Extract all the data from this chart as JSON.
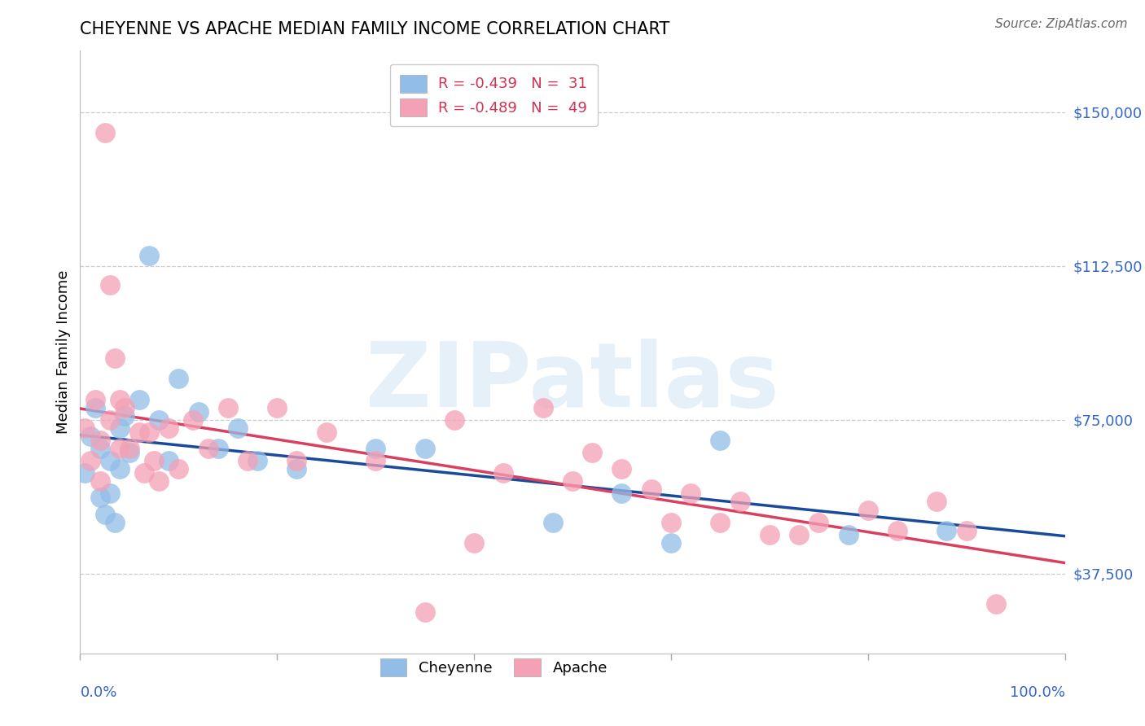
{
  "title": "CHEYENNE VS APACHE MEDIAN FAMILY INCOME CORRELATION CHART",
  "source": "Source: ZipAtlas.com",
  "ylabel": "Median Family Income",
  "yticks": [
    37500,
    75000,
    112500,
    150000
  ],
  "ytick_labels": [
    "$37,500",
    "$75,000",
    "$112,500",
    "$150,000"
  ],
  "xlim": [
    0.0,
    1.0
  ],
  "ylim": [
    18000,
    165000
  ],
  "watermark": "ZIPatlas",
  "R_cheyenne": -0.439,
  "N_cheyenne": 31,
  "R_apache": -0.489,
  "N_apache": 49,
  "cheyenne_color": "#92BDE8",
  "apache_color": "#F4A0B5",
  "cheyenne_line_color": "#1A4A9C",
  "apache_line_color": "#D94060",
  "label_color": "#3366CC",
  "cheyenne_x": [
    0.005,
    0.01,
    0.015,
    0.02,
    0.02,
    0.025,
    0.03,
    0.03,
    0.035,
    0.04,
    0.04,
    0.045,
    0.05,
    0.06,
    0.07,
    0.08,
    0.09,
    0.1,
    0.12,
    0.14,
    0.16,
    0.18,
    0.22,
    0.3,
    0.35,
    0.48,
    0.55,
    0.6,
    0.65,
    0.78,
    0.88
  ],
  "cheyenne_y": [
    62000,
    71000,
    78000,
    68000,
    56000,
    52000,
    65000,
    57000,
    50000,
    73000,
    63000,
    76000,
    67000,
    80000,
    115000,
    75000,
    65000,
    85000,
    77000,
    68000,
    73000,
    65000,
    63000,
    68000,
    68000,
    50000,
    57000,
    45000,
    70000,
    47000,
    48000
  ],
  "apache_x": [
    0.005,
    0.01,
    0.015,
    0.02,
    0.02,
    0.025,
    0.03,
    0.03,
    0.035,
    0.04,
    0.04,
    0.045,
    0.05,
    0.06,
    0.065,
    0.07,
    0.075,
    0.08,
    0.09,
    0.1,
    0.115,
    0.13,
    0.15,
    0.17,
    0.2,
    0.22,
    0.25,
    0.3,
    0.35,
    0.38,
    0.4,
    0.43,
    0.47,
    0.5,
    0.52,
    0.55,
    0.58,
    0.6,
    0.62,
    0.65,
    0.67,
    0.7,
    0.73,
    0.75,
    0.8,
    0.83,
    0.87,
    0.9,
    0.93
  ],
  "apache_y": [
    73000,
    65000,
    80000,
    70000,
    60000,
    145000,
    108000,
    75000,
    90000,
    80000,
    68000,
    78000,
    68000,
    72000,
    62000,
    72000,
    65000,
    60000,
    73000,
    63000,
    75000,
    68000,
    78000,
    65000,
    78000,
    65000,
    72000,
    65000,
    28000,
    75000,
    45000,
    62000,
    78000,
    60000,
    67000,
    63000,
    58000,
    50000,
    57000,
    50000,
    55000,
    47000,
    47000,
    50000,
    53000,
    48000,
    55000,
    48000,
    30000
  ]
}
